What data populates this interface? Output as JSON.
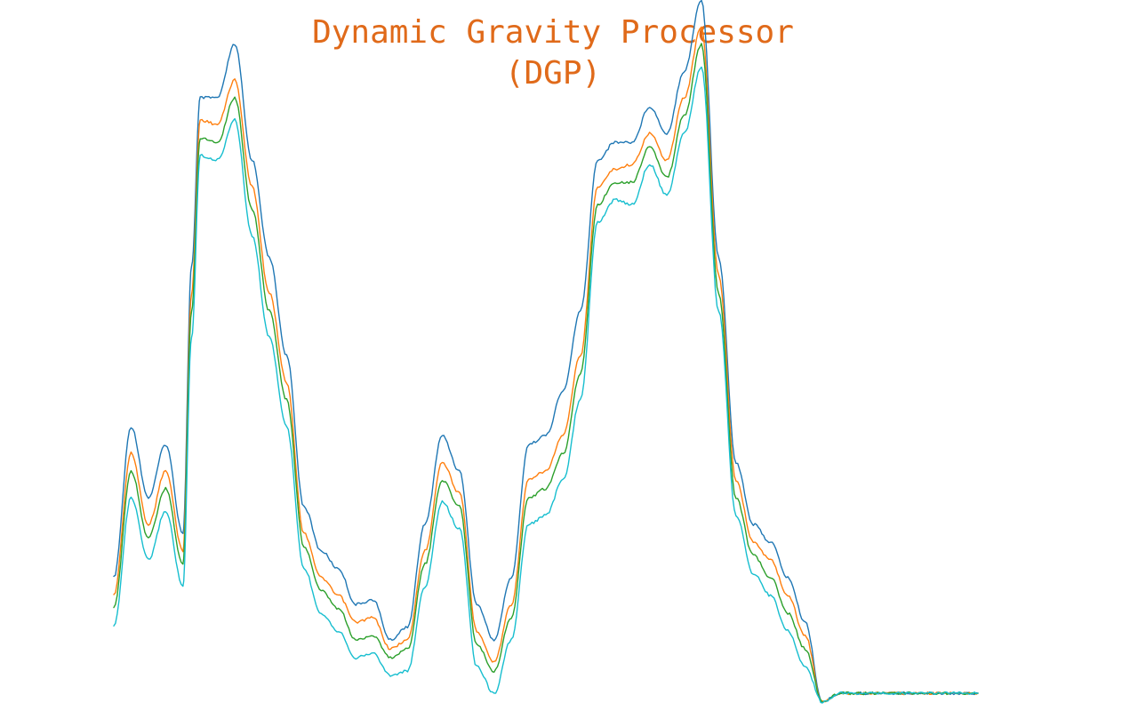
{
  "chart_data": {
    "type": "line",
    "title": "Dynamic Gravity Processor\n(DGP)",
    "title_color": "#e06a1a",
    "xlabel": "",
    "ylabel": "",
    "grid": false,
    "legend": "none",
    "xlim": [
      0,
      1000
    ],
    "ylim": [
      0,
      800
    ],
    "x": [
      0,
      20,
      40,
      60,
      80,
      90,
      100,
      120,
      140,
      160,
      180,
      200,
      220,
      240,
      260,
      280,
      300,
      320,
      340,
      360,
      380,
      400,
      420,
      440,
      460,
      480,
      500,
      520,
      540,
      560,
      580,
      600,
      620,
      640,
      660,
      680,
      700,
      720,
      740,
      760,
      780,
      800,
      820,
      840,
      860,
      880,
      900,
      920,
      940,
      960,
      980,
      1000
    ],
    "series": [
      {
        "color": "#1f77b4",
        "values": [
          150,
          320,
          240,
          300,
          200,
          500,
          690,
          690,
          750,
          620,
          510,
          400,
          230,
          180,
          160,
          120,
          125,
          80,
          95,
          210,
          310,
          270,
          120,
          80,
          150,
          300,
          310,
          360,
          450,
          620,
          640,
          640,
          680,
          650,
          720,
          800,
          510,
          280,
          210,
          190,
          150,
          100,
          10,
          20,
          20,
          20,
          20,
          20,
          20,
          20,
          20,
          20
        ]
      },
      {
        "color": "#ff7f0e",
        "values": [
          130,
          290,
          210,
          270,
          180,
          470,
          665,
          660,
          710,
          590,
          470,
          370,
          200,
          150,
          130,
          100,
          105,
          70,
          80,
          180,
          280,
          245,
          90,
          55,
          120,
          260,
          270,
          310,
          400,
          590,
          610,
          615,
          650,
          620,
          690,
          770,
          490,
          260,
          190,
          170,
          130,
          85,
          10,
          20,
          20,
          20,
          20,
          20,
          20,
          20,
          20,
          20
        ]
      },
      {
        "color": "#2ca02c",
        "values": [
          115,
          270,
          195,
          250,
          165,
          450,
          645,
          640,
          690,
          565,
          450,
          350,
          185,
          135,
          115,
          80,
          85,
          60,
          70,
          165,
          260,
          230,
          75,
          45,
          105,
          240,
          250,
          290,
          380,
          570,
          595,
          595,
          635,
          600,
          670,
          750,
          470,
          240,
          175,
          150,
          110,
          70,
          10,
          20,
          20,
          20,
          20,
          20,
          20,
          20,
          20,
          20
        ]
      },
      {
        "color": "#17becf",
        "values": [
          95,
          240,
          170,
          225,
          140,
          420,
          625,
          620,
          665,
          535,
          420,
          320,
          160,
          110,
          90,
          60,
          65,
          40,
          45,
          140,
          235,
          205,
          50,
          20,
          80,
          210,
          220,
          260,
          350,
          550,
          575,
          570,
          615,
          580,
          650,
          725,
          450,
          220,
          155,
          130,
          90,
          50,
          10,
          20,
          20,
          20,
          20,
          20,
          20,
          20,
          20,
          20
        ]
      }
    ]
  }
}
